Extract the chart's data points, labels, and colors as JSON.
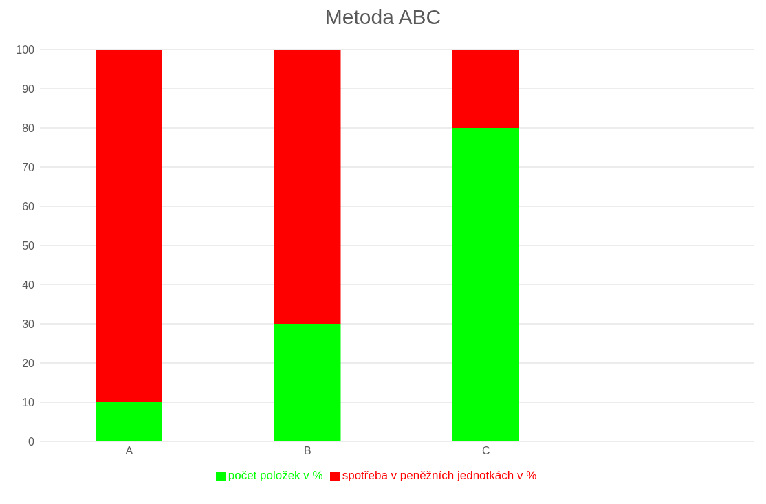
{
  "chart_data": {
    "type": "bar",
    "title": "Metoda ABC",
    "categories": [
      "A",
      "B",
      "C",
      null
    ],
    "stacked": true,
    "series": [
      {
        "name": "počet položek v %",
        "color": "#00ff00",
        "values": [
          10,
          30,
          80,
          null
        ]
      },
      {
        "name": "spotřeba v peněžních jednotkách v %",
        "color": "#ff0000",
        "values": [
          90,
          70,
          20,
          null
        ]
      }
    ],
    "ylim": [
      0,
      100
    ],
    "yticks": [
      0,
      10,
      20,
      30,
      40,
      50,
      60,
      70,
      80,
      90,
      100
    ],
    "grid": "y",
    "legend": "bottom"
  }
}
